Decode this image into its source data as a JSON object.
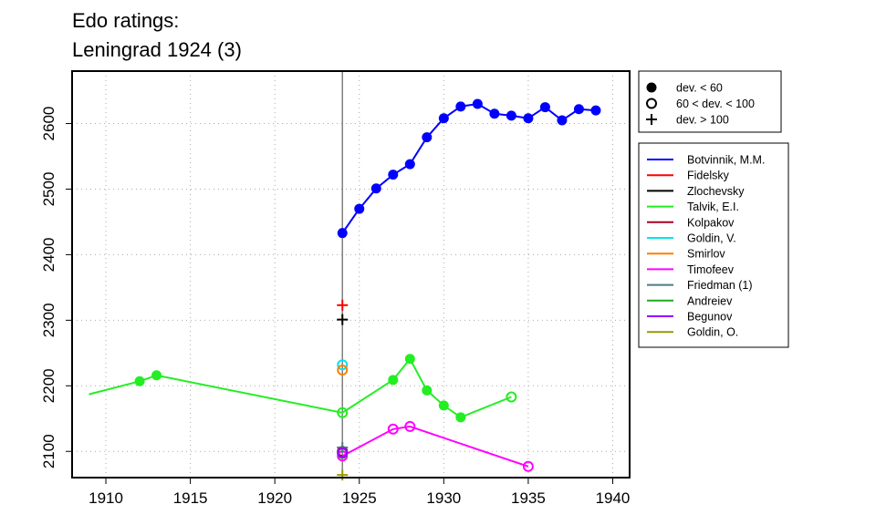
{
  "chart_data": {
    "type": "line",
    "title_lines": [
      "Edo ratings:",
      "Leningrad 1924 (3)"
    ],
    "xlim": [
      1908,
      1941
    ],
    "ylim": [
      2060,
      2680
    ],
    "x_ticks": [
      1910,
      1915,
      1920,
      1925,
      1930,
      1935,
      1940
    ],
    "y_ticks": [
      2100,
      2200,
      2300,
      2400,
      2500,
      2600
    ],
    "grid": true,
    "event_year": 1924,
    "marker_legend": [
      {
        "symbol": "filled",
        "label": "dev. < 60"
      },
      {
        "symbol": "open",
        "label": "60 < dev. < 100"
      },
      {
        "symbol": "plus",
        "label": "dev. > 100"
      }
    ],
    "series": [
      {
        "name": "Botvinnik, M.M.",
        "color": "#0000ff",
        "points": [
          {
            "x": 1924,
            "y": 2433,
            "m": "filled"
          },
          {
            "x": 1925,
            "y": 2470,
            "m": "filled"
          },
          {
            "x": 1926,
            "y": 2501,
            "m": "filled"
          },
          {
            "x": 1927,
            "y": 2522,
            "m": "filled"
          },
          {
            "x": 1928,
            "y": 2538,
            "m": "filled"
          },
          {
            "x": 1929,
            "y": 2579,
            "m": "filled"
          },
          {
            "x": 1930,
            "y": 2608,
            "m": "filled"
          },
          {
            "x": 1931,
            "y": 2626,
            "m": "filled"
          },
          {
            "x": 1932,
            "y": 2630,
            "m": "filled"
          },
          {
            "x": 1933,
            "y": 2615,
            "m": "filled"
          },
          {
            "x": 1934,
            "y": 2612,
            "m": "filled"
          },
          {
            "x": 1935,
            "y": 2608,
            "m": "filled"
          },
          {
            "x": 1936,
            "y": 2625,
            "m": "filled"
          },
          {
            "x": 1937,
            "y": 2605,
            "m": "filled"
          },
          {
            "x": 1938,
            "y": 2622,
            "m": "filled"
          },
          {
            "x": 1939,
            "y": 2620,
            "m": "filled"
          }
        ]
      },
      {
        "name": "Fidelsky",
        "color": "#ff0000",
        "points": [
          {
            "x": 1924,
            "y": 2323,
            "m": "plus"
          }
        ]
      },
      {
        "name": "Zlochevsky",
        "color": "#000000",
        "points": [
          {
            "x": 1924,
            "y": 2301,
            "m": "plus"
          }
        ]
      },
      {
        "name": "Talvik, E.I.",
        "color": "#22ee22",
        "points": [
          {
            "x": 1909,
            "y": 2187,
            "m": "none"
          },
          {
            "x": 1912,
            "y": 2207,
            "m": "filled"
          },
          {
            "x": 1913,
            "y": 2216,
            "m": "filled"
          },
          {
            "x": 1924,
            "y": 2159,
            "m": "open"
          },
          {
            "x": 1927,
            "y": 2209,
            "m": "filled"
          },
          {
            "x": 1928,
            "y": 2241,
            "m": "filled"
          },
          {
            "x": 1929,
            "y": 2193,
            "m": "filled"
          },
          {
            "x": 1930,
            "y": 2170,
            "m": "filled"
          },
          {
            "x": 1931,
            "y": 2152,
            "m": "filled"
          },
          {
            "x": 1934,
            "y": 2183,
            "m": "open"
          }
        ]
      },
      {
        "name": "Kolpakov",
        "color": "#aa0022",
        "points": [
          {
            "x": 1924,
            "y": 2100,
            "m": "open"
          }
        ]
      },
      {
        "name": "Goldin, V.",
        "color": "#00e5ee",
        "points": [
          {
            "x": 1924,
            "y": 2232,
            "m": "open"
          }
        ]
      },
      {
        "name": "Smirlov",
        "color": "#ff7f00",
        "points": [
          {
            "x": 1924,
            "y": 2224,
            "m": "open"
          }
        ]
      },
      {
        "name": "Timofeev",
        "color": "#ff00ff",
        "points": [
          {
            "x": 1924,
            "y": 2093,
            "m": "open"
          },
          {
            "x": 1927,
            "y": 2134,
            "m": "open"
          },
          {
            "x": 1928,
            "y": 2138,
            "m": "open"
          },
          {
            "x": 1935,
            "y": 2077,
            "m": "open"
          }
        ]
      },
      {
        "name": "Friedman (1)",
        "color": "#4d7a87",
        "points": [
          {
            "x": 1924,
            "y": 2106,
            "m": "plus"
          }
        ]
      },
      {
        "name": "Andreiev",
        "color": "#22aa22",
        "points": [
          {
            "x": 1924,
            "y": 2097,
            "m": "open"
          }
        ]
      },
      {
        "name": "Begunov",
        "color": "#9a00ff",
        "points": [
          {
            "x": 1924,
            "y": 2098,
            "m": "open"
          }
        ]
      },
      {
        "name": "Goldin, O.",
        "color": "#999900",
        "points": [
          {
            "x": 1924,
            "y": 2064,
            "m": "plus"
          }
        ]
      }
    ]
  }
}
